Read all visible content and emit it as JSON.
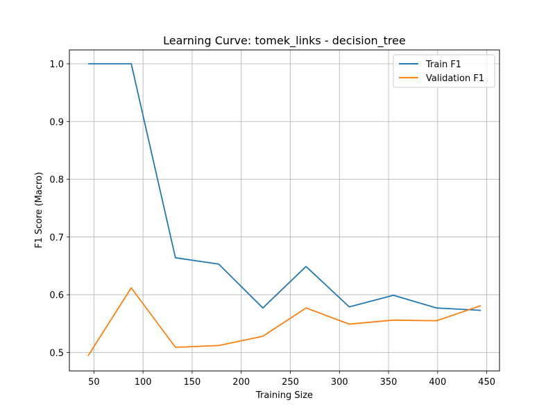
{
  "chart_data": {
    "type": "line",
    "title": "Learning Curve: tomek_links - decision_tree",
    "xlabel": "Training Size",
    "ylabel": "F1 Score (Macro)",
    "xlim": [
      25,
      463
    ],
    "ylim": [
      0.468,
      1.024
    ],
    "xticks": [
      50,
      100,
      150,
      200,
      250,
      300,
      350,
      400,
      450
    ],
    "yticks": [
      0.5,
      0.6,
      0.7,
      0.8,
      0.9,
      1.0
    ],
    "ytick_labels": [
      "0.5",
      "0.6",
      "0.7",
      "0.8",
      "0.9",
      "1.0"
    ],
    "grid": true,
    "legend_position": "top-right",
    "x": [
      44,
      88,
      133,
      177,
      222,
      266,
      310,
      355,
      399,
      444
    ],
    "series": [
      {
        "name": "Train F1",
        "color": "#1f77b4",
        "values": [
          1.0,
          1.0,
          0.664,
          0.653,
          0.577,
          0.649,
          0.579,
          0.599,
          0.577,
          0.573
        ]
      },
      {
        "name": "Validation F1",
        "color": "#ff7f0e",
        "values": [
          0.494,
          0.612,
          0.509,
          0.512,
          0.528,
          0.577,
          0.549,
          0.556,
          0.555,
          0.581
        ]
      }
    ]
  }
}
